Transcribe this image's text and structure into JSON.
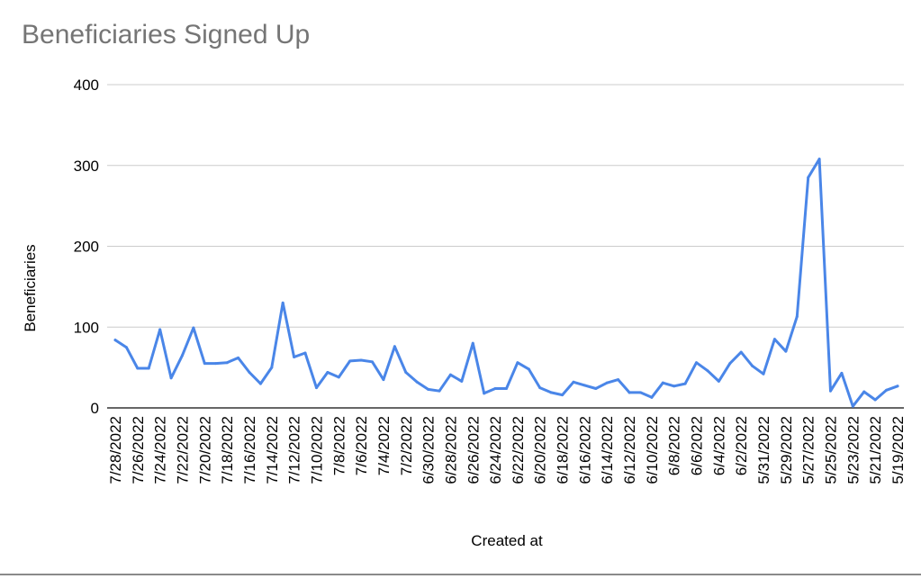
{
  "chart_data": {
    "type": "line",
    "title": "Beneficiaries Signed Up",
    "xlabel": "Created at",
    "ylabel": "Beneficiaries",
    "ylim": [
      0,
      400
    ],
    "yticks": [
      "0",
      "100",
      "200",
      "300",
      "400"
    ],
    "grid": true,
    "legend": "none",
    "line_color": "#4a86e8",
    "x_tick_labels": [
      "7/28/2022",
      "7/26/2022",
      "7/24/2022",
      "7/22/2022",
      "7/20/2022",
      "7/18/2022",
      "7/16/2022",
      "7/14/2022",
      "7/12/2022",
      "7/10/2022",
      "7/8/2022",
      "7/6/2022",
      "7/4/2022",
      "7/2/2022",
      "6/30/2022",
      "6/28/2022",
      "6/26/2022",
      "6/24/2022",
      "6/22/2022",
      "6/20/2022",
      "6/18/2022",
      "6/16/2022",
      "6/14/2022",
      "6/12/2022",
      "6/10/2022",
      "6/8/2022",
      "6/6/2022",
      "6/4/2022",
      "6/2/2022",
      "5/31/2022",
      "5/29/2022",
      "5/27/2022",
      "5/25/2022",
      "5/23/2022",
      "5/21/2022",
      "5/19/2022"
    ],
    "x": [
      "7/28/2022",
      "7/27/2022",
      "7/26/2022",
      "7/25/2022",
      "7/24/2022",
      "7/23/2022",
      "7/22/2022",
      "7/21/2022",
      "7/20/2022",
      "7/19/2022",
      "7/18/2022",
      "7/17/2022",
      "7/16/2022",
      "7/15/2022",
      "7/14/2022",
      "7/13/2022",
      "7/12/2022",
      "7/11/2022",
      "7/10/2022",
      "7/9/2022",
      "7/8/2022",
      "7/7/2022",
      "7/6/2022",
      "7/5/2022",
      "7/4/2022",
      "7/3/2022",
      "7/2/2022",
      "7/1/2022",
      "6/30/2022",
      "6/29/2022",
      "6/28/2022",
      "6/27/2022",
      "6/26/2022",
      "6/25/2022",
      "6/24/2022",
      "6/23/2022",
      "6/22/2022",
      "6/21/2022",
      "6/20/2022",
      "6/19/2022",
      "6/18/2022",
      "6/17/2022",
      "6/16/2022",
      "6/15/2022",
      "6/14/2022",
      "6/13/2022",
      "6/12/2022",
      "6/11/2022",
      "6/10/2022",
      "6/9/2022",
      "6/8/2022",
      "6/7/2022",
      "6/6/2022",
      "6/5/2022",
      "6/4/2022",
      "6/3/2022",
      "6/2/2022",
      "6/1/2022",
      "5/31/2022",
      "5/30/2022",
      "5/29/2022",
      "5/28/2022",
      "5/27/2022",
      "5/26/2022",
      "5/25/2022",
      "5/24/2022",
      "5/23/2022",
      "5/22/2022",
      "5/21/2022",
      "5/20/2022",
      "5/19/2022"
    ],
    "series": [
      {
        "values": [
          84,
          75,
          49,
          49,
          97,
          37,
          65,
          99,
          55,
          55,
          56,
          62,
          44,
          30,
          50,
          130,
          63,
          68,
          25,
          44,
          38,
          58,
          59,
          57,
          35,
          76,
          44,
          32,
          23,
          21,
          41,
          33,
          80,
          18,
          24,
          24,
          56,
          48,
          25,
          19,
          16,
          32,
          28,
          24,
          31,
          35,
          19,
          19,
          13,
          31,
          27,
          30,
          56,
          46,
          33,
          55,
          69,
          52,
          42,
          85,
          70,
          113,
          285,
          308,
          21,
          43,
          2,
          20,
          10,
          22,
          27
        ]
      }
    ]
  }
}
